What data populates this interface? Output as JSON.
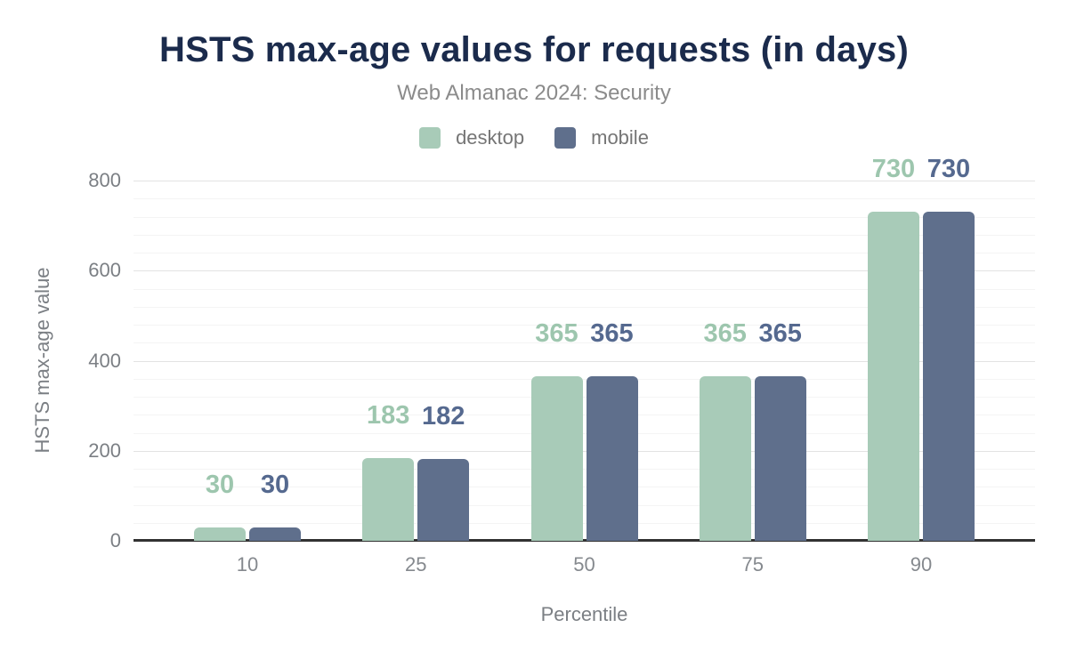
{
  "chart_data": {
    "type": "bar",
    "title": "HSTS max-age values for requests (in days)",
    "subtitle": "Web Almanac 2024: Security",
    "xlabel": "Percentile",
    "ylabel": "HSTS max-age value",
    "categories": [
      "10",
      "25",
      "50",
      "75",
      "90"
    ],
    "series": [
      {
        "name": "desktop",
        "color": "#a8cbb8",
        "label_color": "#9dc6ae",
        "values": [
          30,
          183,
          365,
          365,
          730
        ]
      },
      {
        "name": "mobile",
        "color": "#5f6f8c",
        "label_color": "#55698f",
        "values": [
          30,
          182,
          365,
          365,
          730
        ]
      }
    ],
    "ylim": [
      0,
      800
    ],
    "y_ticks": [
      "0",
      "200",
      "400",
      "600",
      "800"
    ],
    "minor_grid_step": 40,
    "grid": "horizontal-major-and-minor",
    "legend_position": "top",
    "bar_value_labels_shown": true
  },
  "colors": {
    "background": "#ffffff",
    "title_text": "#1b2b4c",
    "subtitle_text": "#8b8b8b",
    "legend_text": "#757575",
    "axis_text": "#7b7f84",
    "major_gridline": "#e3e3e3",
    "minor_gridline": "#f4f4f4",
    "axis_line": "#323232"
  }
}
